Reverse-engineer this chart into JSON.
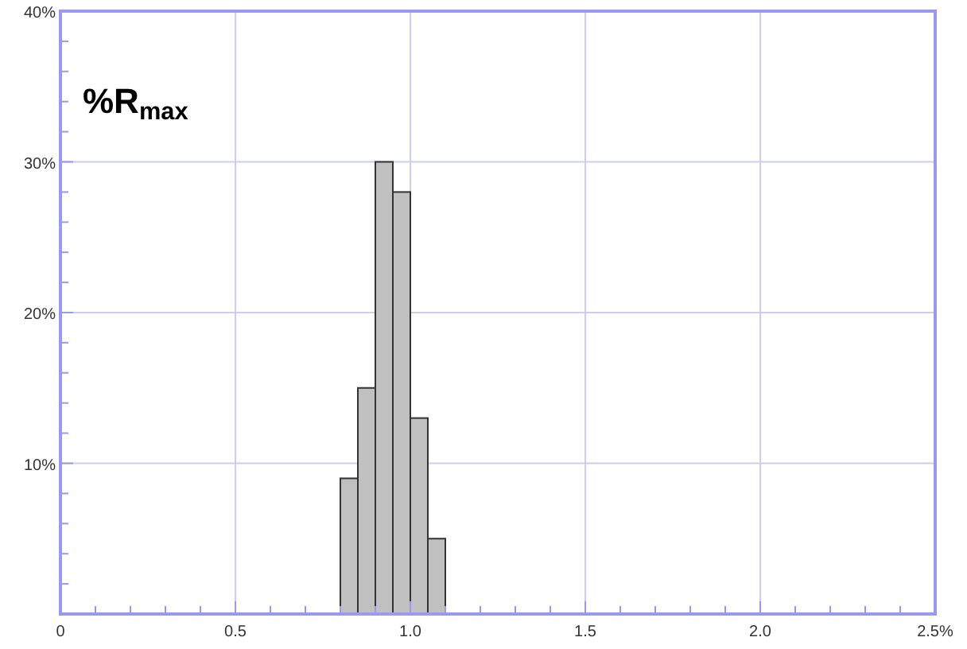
{
  "chart_data": {
    "type": "histogram",
    "title": "%R$_{max}$",
    "bins": [
      0.8,
      0.85,
      0.9,
      0.95,
      1.0,
      1.05,
      1.1
    ],
    "values": [
      9,
      15,
      30,
      28,
      13,
      5
    ],
    "color": "#c0c0c0",
    "xlim": [
      0,
      2.5
    ],
    "ylim": [
      0,
      40
    ],
    "xticks": [
      {
        "value": 0,
        "label": "0"
      },
      {
        "value": 0.1,
        "label": null
      },
      {
        "value": 0.2,
        "label": null
      },
      {
        "value": 0.3,
        "label": null
      },
      {
        "value": 0.4,
        "label": null
      },
      {
        "value": 0.5,
        "label": "0.5"
      },
      {
        "value": 0.6,
        "label": null
      },
      {
        "value": 0.7,
        "label": null
      },
      {
        "value": 0.8,
        "label": null
      },
      {
        "value": 0.9,
        "label": null
      },
      {
        "value": 1,
        "label": "1.0"
      },
      {
        "value": 1.1,
        "label": null
      },
      {
        "value": 1.2,
        "label": null
      },
      {
        "value": 1.3,
        "label": null
      },
      {
        "value": 1.4,
        "label": null
      },
      {
        "value": 1.5,
        "label": "1.5"
      },
      {
        "value": 1.6,
        "label": null
      },
      {
        "value": 1.7,
        "label": null
      },
      {
        "value": 1.8,
        "label": null
      },
      {
        "value": 1.9,
        "label": null
      },
      {
        "value": 2,
        "label": "2.0"
      },
      {
        "value": 2.1,
        "label": null
      },
      {
        "value": 2.2,
        "label": null
      },
      {
        "value": 2.3,
        "label": null
      },
      {
        "value": 2.4,
        "label": null
      },
      {
        "value": 2.5,
        "label": "2.5%"
      }
    ],
    "yticks": [
      {
        "value": 2,
        "label": null
      },
      {
        "value": 4,
        "label": null
      },
      {
        "value": 6,
        "label": null
      },
      {
        "value": 8,
        "label": null
      },
      {
        "value": 10,
        "label": "10%"
      },
      {
        "value": 12,
        "label": null
      },
      {
        "value": 14,
        "label": null
      },
      {
        "value": 16,
        "label": null
      },
      {
        "value": 18,
        "label": null
      },
      {
        "value": 20,
        "label": "20%"
      },
      {
        "value": 22,
        "label": null
      },
      {
        "value": 24,
        "label": null
      },
      {
        "value": 26,
        "label": null
      },
      {
        "value": 28,
        "label": null
      },
      {
        "value": 30,
        "label": "30%"
      },
      {
        "value": 32,
        "label": null
      },
      {
        "value": 34,
        "label": null
      },
      {
        "value": 36,
        "label": null
      },
      {
        "value": 38,
        "label": null
      },
      {
        "value": 40,
        "label": "40%"
      }
    ],
    "grid": true
  }
}
